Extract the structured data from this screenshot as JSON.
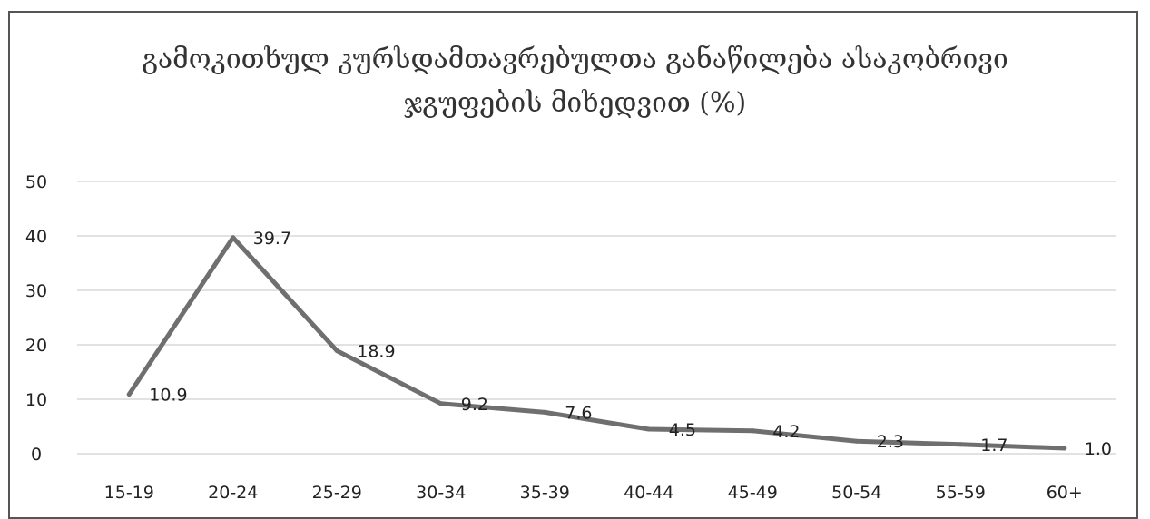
{
  "chart_data": {
    "type": "line",
    "title_lines": [
      "გამოკითხულ კურსდამთავრებულთა განაწილება ასაკობრივი",
      "ჯგუფების მიხედვით (%)"
    ],
    "categories": [
      "15-19",
      "20-24",
      "25-29",
      "30-34",
      "35-39",
      "40-44",
      "45-49",
      "50-54",
      "55-59",
      "60+"
    ],
    "series": [
      {
        "values": [
          10.9,
          39.7,
          18.9,
          9.2,
          7.6,
          4.5,
          4.2,
          2.3,
          1.7,
          1.0
        ],
        "labels": [
          "10.9",
          "39.7",
          "18.9",
          "9.2",
          "7.6",
          "4.5",
          "4.2",
          "2.3",
          "1.7",
          "1.0"
        ]
      }
    ],
    "ylim": [
      0,
      50
    ],
    "yticks": [
      0,
      10,
      20,
      30,
      40,
      50
    ],
    "grid": true,
    "colors": {
      "line": "#6f6f6f",
      "grid": "#d9d9d9",
      "text": "#222222"
    }
  }
}
